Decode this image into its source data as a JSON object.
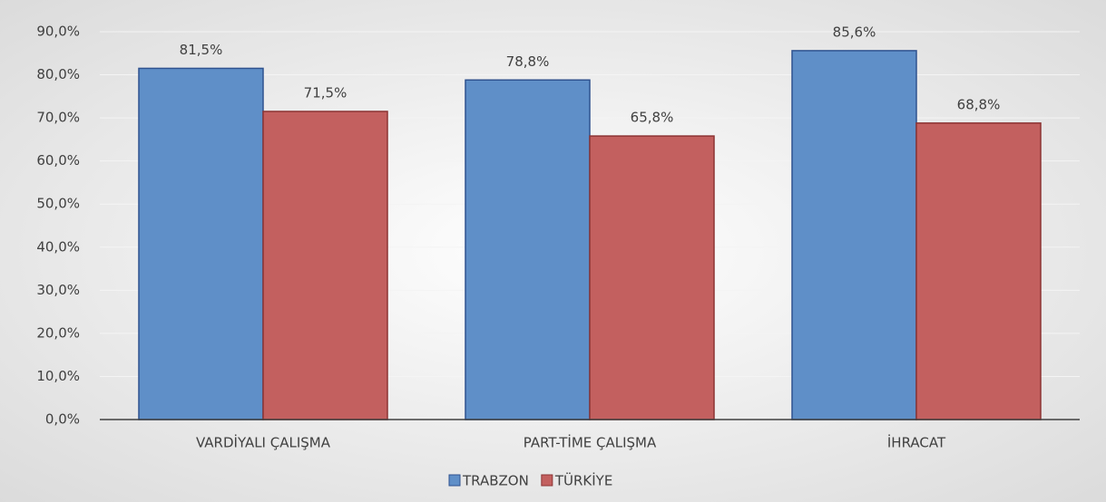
{
  "chart_data": {
    "type": "bar",
    "categories": [
      "VARDİYALI ÇALIŞMA",
      "PART-TİME ÇALIŞMA",
      "İHRACAT"
    ],
    "series": [
      {
        "name": "TRABZON",
        "color": "#5f8fc8",
        "values": [
          81.5,
          78.8,
          85.6
        ],
        "value_labels": [
          "81,5%",
          "78,8%",
          "85,6%"
        ]
      },
      {
        "name": "TÜRKİYE",
        "color": "#c3605f",
        "values": [
          71.5,
          65.8,
          68.8
        ],
        "value_labels": [
          "71,5%",
          "65,8%",
          "68,8%"
        ]
      }
    ],
    "ylim": [
      0,
      90
    ],
    "yticks": [
      {
        "value": 0,
        "label": "0,0%"
      },
      {
        "value": 10,
        "label": "10,0%"
      },
      {
        "value": 20,
        "label": "20,0%"
      },
      {
        "value": 30,
        "label": "30,0%"
      },
      {
        "value": 40,
        "label": "40,0%"
      },
      {
        "value": 50,
        "label": "50,0%"
      },
      {
        "value": 60,
        "label": "60,0%"
      },
      {
        "value": 70,
        "label": "70,0%"
      },
      {
        "value": 80,
        "label": "80,0%"
      },
      {
        "value": 90,
        "label": "90,0%"
      }
    ],
    "grid": true,
    "legend": "bottom"
  }
}
